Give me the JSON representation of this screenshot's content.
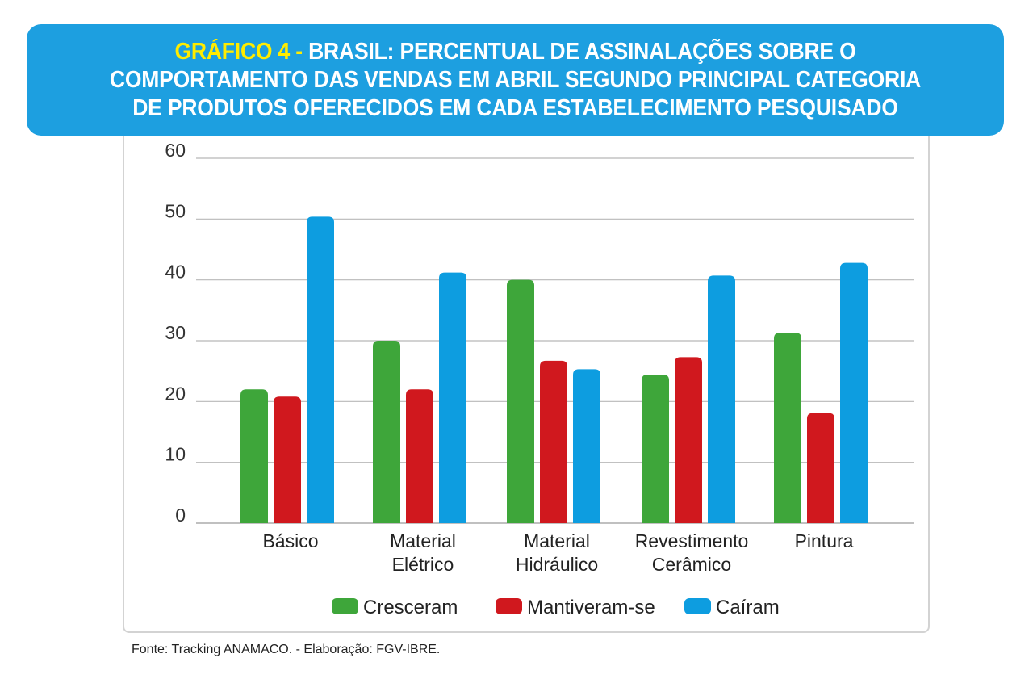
{
  "title": {
    "prefix": "GRÁFICO 4 - ",
    "line1": "BRASIL: PERCENTUAL DE ASSINALAÇÕES SOBRE O",
    "line2": "COMPORTAMENTO DAS VENDAS EM ABRIL SEGUNDO PRINCIPAL CATEGORIA",
    "line3": "DE PRODUTOS OFERECIDOS EM CADA ESTABELECIMENTO PESQUISADO"
  },
  "source": "Fonte: Tracking ANAMACO. - Elaboração: FGV-IBRE.",
  "chart_data": {
    "type": "bar",
    "title": "GRÁFICO 4 - BRASIL: PERCENTUAL DE ASSINALAÇÕES SOBRE O COMPORTAMENTO DAS VENDAS EM ABRIL SEGUNDO PRINCIPAL CATEGORIA DE PRODUTOS OFERECIDOS EM CADA ESTABELECIMENTO PESQUISADO",
    "xlabel": "",
    "ylabel": "",
    "ylim": [
      0,
      60
    ],
    "yticks": [
      0,
      10,
      20,
      30,
      40,
      50,
      60
    ],
    "grid": true,
    "legend_position": "bottom",
    "categories": [
      [
        "Básico"
      ],
      [
        "Material",
        "Elétrico"
      ],
      [
        "Material",
        "Hidráulico"
      ],
      [
        "Revestimento",
        "Cerâmico"
      ],
      [
        "Pintura"
      ]
    ],
    "series": [
      {
        "name": "Cresceram",
        "color": "#3ea63a",
        "values": [
          22,
          30,
          40,
          24.4,
          31.3
        ]
      },
      {
        "name": "Mantiveram-se",
        "color": "#d0181e",
        "values": [
          20.8,
          22,
          26.7,
          27.3,
          18.1
        ]
      },
      {
        "name": "Caíram",
        "color": "#0d9de0",
        "values": [
          50.4,
          41.2,
          25.3,
          40.7,
          42.8
        ]
      }
    ]
  }
}
